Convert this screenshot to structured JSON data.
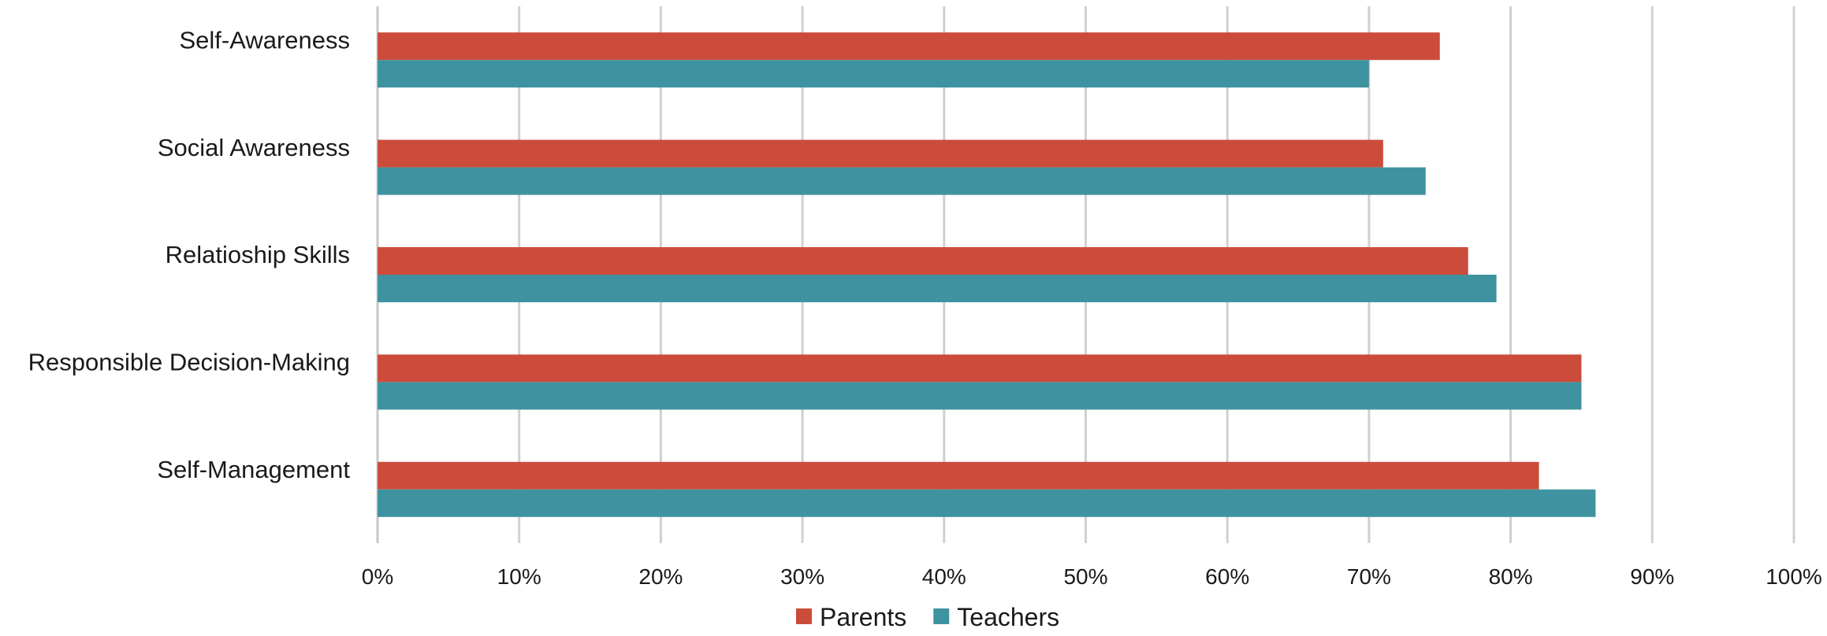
{
  "chart_data": {
    "type": "bar",
    "orientation": "horizontal",
    "categories": [
      "Self-Awareness",
      "Social Awareness",
      "Relatioship Skills",
      "Responsible Decision-Making",
      "Self-Management"
    ],
    "series": [
      {
        "name": "Parents",
        "color": "#cc4c3b",
        "values": [
          75,
          71,
          77,
          85,
          82
        ]
      },
      {
        "name": "Teachers",
        "color": "#3f93a0",
        "values": [
          70,
          74,
          79,
          85,
          86
        ]
      }
    ],
    "x_ticks": [
      "0%",
      "10%",
      "20%",
      "30%",
      "40%",
      "50%",
      "60%",
      "70%",
      "80%",
      "90%",
      "100%"
    ],
    "xlim": [
      0,
      100
    ],
    "unit": "%",
    "grid": "vertical",
    "legend_position": "bottom"
  }
}
